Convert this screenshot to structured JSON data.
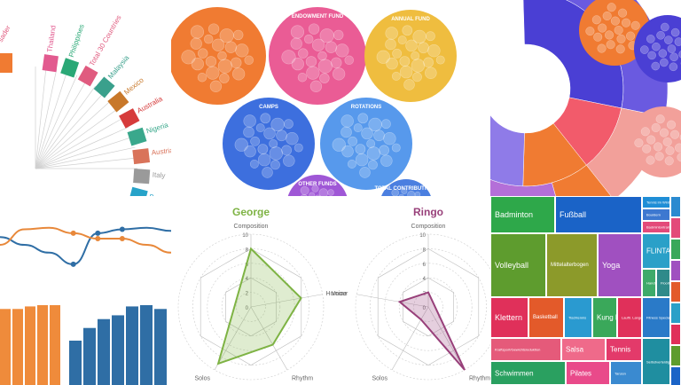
{
  "chart_data": [
    {
      "type": "radial-bar",
      "categories": [
        "Thailand",
        "Philippines",
        "Total 30 Countries",
        "Malaysia",
        "Mexico",
        "Australia",
        "Nigeria",
        "Austria",
        "Italy",
        "Belgium"
      ],
      "partial_first_label": "sader",
      "colors": {
        "Thailand": "#e25a8f",
        "Philippines": "#2aa876",
        "Total 30 Countries": "#e05b7f",
        "Malaysia": "#3aa08c",
        "Mexico": "#c8782a",
        "Australia": "#d63b3b",
        "Nigeria": "#3aa88c",
        "Austria": "#d9735a",
        "Italy": "#9a9a9a",
        "Belgium": "#27a3c9"
      }
    },
    {
      "type": "packed-circles",
      "groups": [
        {
          "name": "ENDOWMENT FUND",
          "color": "#ea5c95"
        },
        {
          "name": "ANNUAL FUND",
          "color": "#efbd3f"
        },
        {
          "name": "CAMPS",
          "color": "#3d6fde"
        },
        {
          "name": "ROTATIONS",
          "color": "#5799ec"
        },
        {
          "name": "OTHER FUNDS",
          "color": "#9f57d6"
        },
        {
          "name": "TOTAL CONTRIBUTIONS",
          "color": "#4b7fe0"
        }
      ],
      "partial_group_color": "#f07b32"
    },
    {
      "type": "sunburst",
      "colors": [
        "#4a3fd4",
        "#6a5ae0",
        "#8f7be8",
        "#f07b32",
        "#f25b6b",
        "#f2a09a",
        "#b46fd8"
      ]
    },
    {
      "type": "line",
      "x": [
        0,
        1,
        2,
        3,
        4,
        5,
        6,
        7
      ],
      "series": [
        {
          "color": "#2f6ea5",
          "values": [
            5,
            4,
            3,
            1.5,
            5.5,
            6,
            6.2,
            5.8
          ]
        },
        {
          "color": "#e8883a",
          "values": [
            4,
            6,
            6.2,
            5.5,
            4.8,
            4.8,
            4,
            3
          ]
        }
      ],
      "ylim": [
        0,
        8
      ]
    },
    {
      "type": "bar",
      "series": [
        {
          "color": "#ef8b3b",
          "values": [
            6,
            6,
            6.2,
            6.3,
            6.3
          ]
        },
        {
          "color": "#2f6ea5",
          "values": [
            3.5,
            4.5,
            5.2,
            5.5,
            6.2,
            6.3,
            6
          ]
        }
      ],
      "ylim": [
        0,
        7
      ]
    },
    {
      "type": "radar",
      "title": "George",
      "color": "#7eb344",
      "axes": [
        "Composition",
        "Voice",
        "Rhythm",
        "Solos"
      ],
      "ticks": [
        "0",
        "2",
        "4",
        "6",
        "8",
        "10"
      ],
      "range": [
        0,
        10
      ],
      "values": [
        8,
        7,
        6,
        9
      ]
    },
    {
      "type": "radar",
      "title": "Ringo",
      "color": "#98407a",
      "axes": [
        "Composition",
        "Rhythm",
        "Solos",
        "Humour"
      ],
      "ticks": [
        "0",
        "2",
        "4",
        "6",
        "8",
        "10"
      ],
      "range": [
        0,
        10
      ],
      "values": [
        2,
        10,
        2,
        4
      ]
    },
    {
      "type": "treemap",
      "items": [
        {
          "label": "Badminton",
          "color": "#2ea84a",
          "size": "lg"
        },
        {
          "label": "Fußball",
          "color": "#1a63c7",
          "size": "lg"
        },
        {
          "label": "Tennis im Wintersemester",
          "color": "#1f8ed6",
          "size": "xs"
        },
        {
          "label": "Bouldern",
          "color": "#3d78d0",
          "size": "xs"
        },
        {
          "label": "Badmintontraining",
          "color": "#e34a7a",
          "size": "xs"
        },
        {
          "label": "Volleyball",
          "color": "#5e9c2e",
          "size": "lg"
        },
        {
          "label": "Mittelalterbogen",
          "color": "#8c9a2a",
          "size": "sm"
        },
        {
          "label": "Yoga",
          "color": "#a050c0",
          "size": "lg"
        },
        {
          "label": "FLINTA - Fitness",
          "color": "#2aa0c8",
          "size": "md"
        },
        {
          "label": "Handball",
          "color": "#3eaa6a",
          "size": "xs"
        },
        {
          "label": "Floorball",
          "color": "#2f8a8a",
          "size": "xs"
        },
        {
          "label": "Klettern",
          "color": "#e0305a",
          "size": "lg"
        },
        {
          "label": "Basketball",
          "color": "#e35a2a",
          "size": "sm"
        },
        {
          "label": "Tischtennis",
          "color": "#2a9ad0",
          "size": "xs"
        },
        {
          "label": "Kung Fu",
          "color": "#3aa85a",
          "size": "md"
        },
        {
          "label": "Lauftr. Lange Wanderung",
          "color": "#e0305a",
          "size": "xs"
        },
        {
          "label": "Fitness Special",
          "color": "#2a7ac8",
          "size": "xs"
        },
        {
          "label": "Kraftsport/Gewichtsreduktion",
          "color": "#e55a7a",
          "size": "xs"
        },
        {
          "label": "Salsa",
          "color": "#ef6a8a",
          "size": "md"
        },
        {
          "label": "Tennis",
          "color": "#e33a6a",
          "size": "md"
        },
        {
          "label": "Schwimmen",
          "color": "#2aa060",
          "size": "md"
        },
        {
          "label": "Pilates",
          "color": "#e94a8a",
          "size": "md"
        },
        {
          "label": "Tanzen",
          "color": "#3a8ad0",
          "size": "xs"
        },
        {
          "label": "Selbstverteidigung",
          "color": "#1f8ea0",
          "size": "xs"
        }
      ]
    }
  ]
}
